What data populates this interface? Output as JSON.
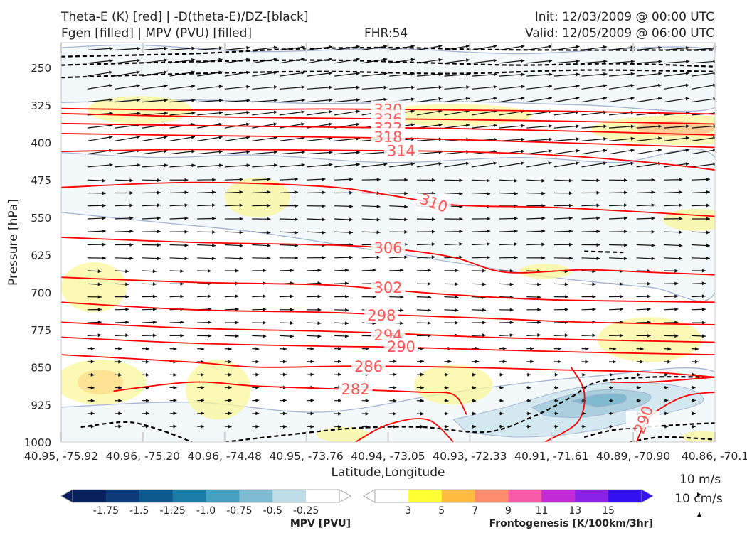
{
  "header": {
    "title_line1": "Theta-E (K) [red] | -D(theta-E)/DZ-[black]",
    "title_line2": "Fgen [filled] | MPV (PVU) [filled]",
    "fhr": "FHR:54",
    "init": "Init: 12/03/2009 @ 00:00 UTC",
    "valid": "Valid: 12/05/2009 @ 06:00 UTC"
  },
  "chart_data": {
    "type": "cross-section",
    "xlabel": "Latitude,Longitude",
    "ylabel": "Pressure [hPa]",
    "ylim": [
      1000,
      200
    ],
    "y_ticks": [
      "250",
      "325",
      "400",
      "475",
      "550",
      "625",
      "700",
      "775",
      "850",
      "925",
      "1000"
    ],
    "y_tick_values": [
      250,
      325,
      400,
      475,
      550,
      625,
      700,
      775,
      850,
      925,
      1000
    ],
    "x_ticks": [
      "40.95, -75.92",
      "40.96, -75.20",
      "40.96, -74.48",
      "40.95, -73.76",
      "40.94, -73.05",
      "40.93, -72.33",
      "40.91, -71.61",
      "40.89, -70.90",
      "40.86, -70.1"
    ],
    "theta_e_colors": {
      "line": "#ff0000",
      "label": "#ff5555"
    },
    "theta_e_contours": [
      {
        "label": "330",
        "pts": [
          [
            0,
            332
          ],
          [
            0.2,
            335
          ],
          [
            0.4,
            333
          ],
          [
            0.6,
            335
          ],
          [
            0.8,
            338
          ],
          [
            1,
            343
          ]
        ]
      },
      {
        "label": "326",
        "pts": [
          [
            0,
            342
          ],
          [
            0.2,
            348
          ],
          [
            0.45,
            352
          ],
          [
            0.6,
            354
          ],
          [
            0.8,
            358
          ],
          [
            1,
            363
          ]
        ]
      },
      {
        "label": "322",
        "pts": [
          [
            0,
            362
          ],
          [
            0.2,
            366
          ],
          [
            0.45,
            370
          ],
          [
            0.6,
            372
          ],
          [
            0.8,
            378
          ],
          [
            1,
            385
          ]
        ]
      },
      {
        "label": "318",
        "pts": [
          [
            0,
            382
          ],
          [
            0.2,
            386
          ],
          [
            0.45,
            390
          ],
          [
            0.6,
            394
          ],
          [
            0.8,
            402
          ],
          [
            1,
            410
          ]
        ]
      },
      {
        "label": "314",
        "pts": [
          [
            0,
            418
          ],
          [
            0.2,
            414
          ],
          [
            0.45,
            416
          ],
          [
            0.6,
            418
          ],
          [
            0.75,
            425
          ],
          [
            0.9,
            440
          ],
          [
            1,
            455
          ]
        ]
      },
      {
        "label": "310",
        "pts": [
          [
            0,
            490
          ],
          [
            0.2,
            480
          ],
          [
            0.4,
            488
          ],
          [
            0.5,
            505
          ],
          [
            0.6,
            525
          ],
          [
            0.75,
            530
          ],
          [
            0.9,
            540
          ],
          [
            1,
            548
          ]
        ]
      },
      {
        "label": "306",
        "pts": [
          [
            0,
            590
          ],
          [
            0.2,
            600
          ],
          [
            0.4,
            605
          ],
          [
            0.5,
            612
          ],
          [
            0.6,
            630
          ],
          [
            0.68,
            660
          ],
          [
            0.8,
            655
          ],
          [
            0.9,
            660
          ],
          [
            1,
            665
          ]
        ]
      },
      {
        "label": "302",
        "pts": [
          [
            0,
            670
          ],
          [
            0.2,
            680
          ],
          [
            0.4,
            685
          ],
          [
            0.5,
            695
          ],
          [
            0.6,
            705
          ],
          [
            0.75,
            715
          ],
          [
            1,
            720
          ]
        ]
      },
      {
        "label": "298",
        "pts": [
          [
            0,
            720
          ],
          [
            0.2,
            735
          ],
          [
            0.4,
            740
          ],
          [
            0.5,
            745
          ],
          [
            0.65,
            752
          ],
          [
            0.8,
            760
          ],
          [
            1,
            765
          ]
        ]
      },
      {
        "label": "294",
        "pts": [
          [
            0,
            760
          ],
          [
            0.2,
            772
          ],
          [
            0.4,
            778
          ],
          [
            0.5,
            782
          ],
          [
            0.65,
            790
          ],
          [
            0.8,
            795
          ],
          [
            1,
            800
          ]
        ]
      },
      {
        "label": "290",
        "pts": [
          [
            0,
            790
          ],
          [
            0.2,
            802
          ],
          [
            0.4,
            808
          ],
          [
            0.52,
            810
          ],
          [
            0.65,
            815
          ],
          [
            0.8,
            820
          ],
          [
            1,
            825
          ]
        ]
      },
      {
        "label": "286",
        "pts": [
          [
            0,
            825
          ],
          [
            0.2,
            840
          ],
          [
            0.3,
            850
          ],
          [
            0.45,
            848
          ],
          [
            0.6,
            850
          ],
          [
            0.75,
            855
          ],
          [
            0.9,
            860
          ],
          [
            1,
            870
          ]
        ]
      },
      {
        "label": "282",
        "pts": [
          [
            0.08,
            898
          ],
          [
            0.2,
            880
          ],
          [
            0.3,
            888
          ],
          [
            0.45,
            895
          ],
          [
            0.55,
            900
          ],
          [
            0.6,
            905
          ],
          [
            0.62,
            945
          ]
        ]
      },
      {
        "label": "290",
        "pts": [
          [
            0.88,
            1000
          ],
          [
            0.9,
            950
          ],
          [
            0.95,
            910
          ],
          [
            1,
            900
          ]
        ]
      }
    ],
    "theta_e_label_positions": [
      [
        0.5,
        333
      ],
      [
        0.5,
        352
      ],
      [
        0.5,
        370
      ],
      [
        0.5,
        388
      ],
      [
        0.52,
        416
      ],
      [
        0.57,
        520
      ],
      [
        0.5,
        610
      ],
      [
        0.5,
        690
      ],
      [
        0.49,
        745
      ],
      [
        0.5,
        785
      ],
      [
        0.52,
        808
      ],
      [
        0.47,
        848
      ],
      [
        0.45,
        893
      ],
      [
        0.89,
        955
      ]
    ],
    "mpv_colorbar": {
      "label": "MPV [PVU]",
      "ticks": [
        "-1.75",
        "-1.5",
        "-1.25",
        "-1.0",
        "-0.75",
        "-0.5",
        "-0.25"
      ],
      "colors": [
        "#08205e",
        "#0c3d7a",
        "#0e5a8e",
        "#1a7da5",
        "#45a0c2",
        "#7fbcd4",
        "#bfdde6",
        "#ffffff"
      ]
    },
    "fgen_colorbar": {
      "label": "Frontogenesis [K/100km/3hr]",
      "ticks": [
        "3",
        "5",
        "7",
        "9",
        "11",
        "13",
        "15"
      ],
      "colors": [
        "#ffffff",
        "#ffff33",
        "#fdbb3f",
        "#fc8c6c",
        "#f85ca8",
        "#c22bd6",
        "#8b22e8",
        "#3311f2"
      ]
    },
    "wind_key": {
      "line1": "10 m/s",
      "line2": "10 cm/s"
    }
  }
}
